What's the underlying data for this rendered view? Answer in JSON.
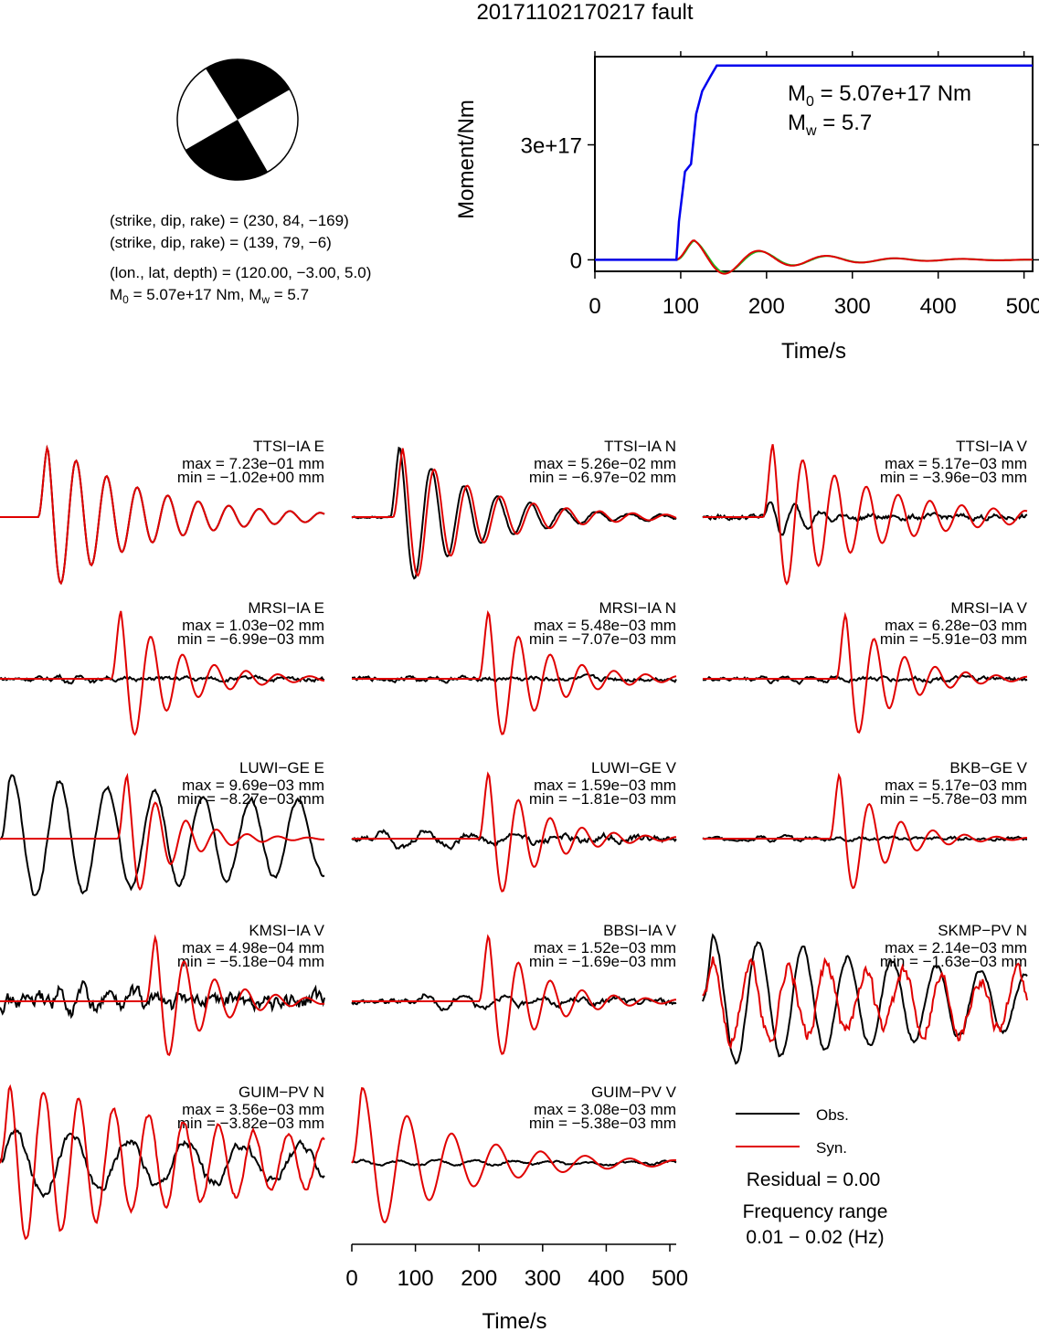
{
  "title": "20171102170217 fault",
  "mechanism": {
    "lines": [
      "(strike, dip, rake) = (230, 84, −169)",
      "(strike, dip, rake) = (139, 79, −6)",
      "(lon., lat, depth) = (120.00, −3.00, 5.0)"
    ],
    "m0_prefix": "M",
    "m0_sub": "0",
    "m0_rest": " = 5.07e+17 Nm, M",
    "mw_sub": "w",
    "mw_rest": " = 5.7"
  },
  "colors": {
    "obs": "#000000",
    "syn": "#e00000",
    "cumulative": "#0000ee",
    "rate_green": "#22bb22"
  },
  "chart_data": [
    {
      "type": "line",
      "name": "moment-function",
      "xlabel": "Time/s",
      "ylabel": "Moment/Nm",
      "xlim": [
        0,
        510
      ],
      "ylim": [
        -3e+16,
        5.3e+17
      ],
      "xticks": [
        0,
        100,
        200,
        300,
        400,
        500
      ],
      "yticks": [
        0,
        3e+17
      ],
      "ytick_labels": [
        "0",
        "3e+17"
      ],
      "annotation": {
        "m0_prefix": "M",
        "m0_sub": "0",
        "m0_rest": " = 5.07e+17 Nm",
        "mw_prefix": "M",
        "mw_sub": "w",
        "mw_rest": " = 5.7"
      },
      "cumulative_moment": {
        "x": [
          0,
          95,
          98,
          105,
          112,
          118,
          125,
          135,
          142,
          150,
          510
        ],
        "y": [
          0,
          0,
          1e+17,
          2.3e+17,
          2.5e+17,
          3.8e+17,
          4.4e+17,
          4.8e+17,
          5.07e+17,
          5.07e+17,
          5.07e+17
        ]
      },
      "rate_pulse": {
        "amplitude": 6.2e+16,
        "t0": 95,
        "period": 79,
        "decay": 95,
        "phase_shift": 8
      }
    },
    {
      "type": "line",
      "name": "waveform-fits",
      "xlabel": "Time/s",
      "xlim": [
        0,
        510
      ],
      "xticks": [
        0,
        100,
        200,
        300,
        400,
        500
      ],
      "legend": {
        "obs": "Obs.",
        "syn": "Syn.",
        "residual": "Residual = 0.00",
        "freq_title": "Frequency range",
        "freq_range": "0.01 − 0.02 (Hz)"
      },
      "panels": [
        {
          "station": "TTSI−IA E",
          "max": "max = 7.23e−01 mm",
          "min": "min = −1.02e+00 mm",
          "obs": {
            "a": 0.0,
            "t0": 90,
            "p": 48,
            "d": 140,
            "noise": 0.0
          },
          "syn": {
            "a": 1.0,
            "t0": 60,
            "p": 48,
            "d": 150,
            "noise": 0.0
          },
          "match": true
        },
        {
          "station": "TTSI−IA N",
          "max": "max = 5.26e−02 mm",
          "min": "min = −6.97e−02 mm",
          "obs": {
            "a": 1.0,
            "t0": 60,
            "p": 52,
            "d": 120,
            "noise": 0.02
          },
          "syn": {
            "a": 0.95,
            "t0": 65,
            "p": 52,
            "d": 125,
            "noise": 0.0
          }
        },
        {
          "station": "TTSI−IA V",
          "max": "max = 5.17e−03 mm",
          "min": "min = −3.96e−03 mm",
          "obs": {
            "a": 0.3,
            "t0": 95,
            "p": 40,
            "d": 60,
            "noise": 0.05
          },
          "syn": {
            "a": 1.0,
            "t0": 95,
            "p": 50,
            "d": 160,
            "noise": 0.0
          }
        },
        {
          "station": "MRSI−IA E",
          "max": "max = 1.03e−02 mm",
          "min": "min = −6.99e−03 mm",
          "obs": {
            "a": 0.05,
            "t0": 80,
            "p": 40,
            "d": 120,
            "noise": 0.04
          },
          "syn": {
            "a": 1.0,
            "t0": 175,
            "p": 50,
            "d": 90,
            "noise": 0.0
          }
        },
        {
          "station": "MRSI−IA N",
          "max": "max = 5.48e−03 mm",
          "min": "min = −7.07e−03 mm",
          "obs": {
            "a": 0.05,
            "t0": 80,
            "p": 40,
            "d": 120,
            "noise": 0.04
          },
          "syn": {
            "a": 1.0,
            "t0": 200,
            "p": 50,
            "d": 90,
            "noise": 0.0
          }
        },
        {
          "station": "MRSI−IA V",
          "max": "max = 6.28e−03 mm",
          "min": "min = −5.91e−03 mm",
          "obs": {
            "a": 0.05,
            "t0": 80,
            "p": 40,
            "d": 120,
            "noise": 0.04
          },
          "syn": {
            "a": 1.0,
            "t0": 210,
            "p": 48,
            "d": 80,
            "noise": 0.0
          }
        },
        {
          "station": "LUWI−GE E",
          "max": "max = 9.69e−03 mm",
          "min": "min = −8.27e−03 mm",
          "obs": {
            "a": 0.75,
            "t0": 0,
            "p": 75,
            "d": 900,
            "noise": 0.05
          },
          "syn": {
            "a": 1.0,
            "t0": 185,
            "p": 48,
            "d": 70,
            "noise": 0.0
          }
        },
        {
          "station": "LUWI−GE V",
          "max": "max = 1.59e−03 mm",
          "min": "min = −1.81e−03 mm",
          "obs": {
            "a": 0.15,
            "t0": 30,
            "p": 70,
            "d": 200,
            "noise": 0.06
          },
          "syn": {
            "a": 1.0,
            "t0": 200,
            "p": 50,
            "d": 80,
            "noise": 0.0
          }
        },
        {
          "station": "BKB−GE V",
          "max": "max = 5.17e−03 mm",
          "min": "min = −5.78e−03 mm",
          "obs": {
            "a": 0.03,
            "t0": 80,
            "p": 40,
            "d": 120,
            "noise": 0.03
          },
          "syn": {
            "a": 1.0,
            "t0": 200,
            "p": 50,
            "d": 70,
            "noise": 0.0
          }
        },
        {
          "station": "KMSI−IA V",
          "max": "max = 4.98e−04 mm",
          "min": "min = −5.18e−04 mm",
          "obs": {
            "a": 0.2,
            "t0": 80,
            "p": 40,
            "d": 200,
            "noise": 0.15
          },
          "syn": {
            "a": 1.0,
            "t0": 230,
            "p": 48,
            "d": 80,
            "noise": 0.0
          }
        },
        {
          "station": "BBSI−IA V",
          "max": "max = 1.52e−03 mm",
          "min": "min = −1.69e−03 mm",
          "obs": {
            "a": 0.12,
            "t0": 100,
            "p": 60,
            "d": 200,
            "noise": 0.05
          },
          "syn": {
            "a": 1.0,
            "t0": 200,
            "p": 50,
            "d": 80,
            "noise": 0.0
          }
        },
        {
          "station": "SKMP−PV N",
          "max": "max = 2.14e−03 mm",
          "min": "min = −1.63e−03 mm",
          "obs": {
            "a": 0.8,
            "t0": 0,
            "p": 70,
            "d": 600,
            "noise": 0.05
          },
          "syn": {
            "a": 0.5,
            "t0": 0,
            "p": 60,
            "d": 800,
            "noise": 0.15
          }
        },
        {
          "station": "GUIM−PV N",
          "max": "max = 3.56e−03 mm",
          "min": "min = −3.82e−03 mm",
          "obs": {
            "a": 0.4,
            "t0": 0,
            "p": 90,
            "d": 600,
            "noise": 0.08
          },
          "syn": {
            "a": 1.0,
            "t0": 0,
            "p": 55,
            "d": 400,
            "noise": 0.05
          }
        },
        {
          "station": "GUIM−PV V",
          "max": "max = 3.08e−03 mm",
          "min": "min = −5.38e−03 mm",
          "obs": {
            "a": 0.03,
            "t0": 0,
            "p": 60,
            "d": 600,
            "noise": 0.02
          },
          "syn": {
            "a": 1.0,
            "t0": 0,
            "p": 70,
            "d": 150,
            "noise": 0.0
          }
        }
      ]
    }
  ]
}
